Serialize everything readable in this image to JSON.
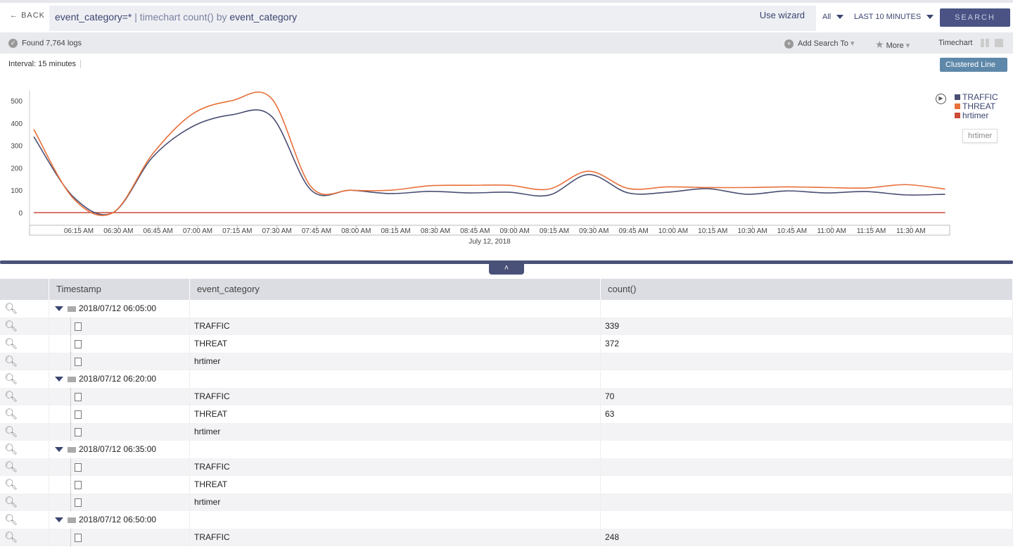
{
  "topbar": {
    "back_label": "BACK",
    "query_main": "event_category=*",
    "query_rest": " | timechart count() by ",
    "query_field": "event_category",
    "wizard_label": "Use wizard",
    "scope": "All",
    "time_range": "LAST 10 MINUTES",
    "search_label": "SEARCH"
  },
  "status": {
    "found": "Found 7,764 logs",
    "add_search": "Add Search To",
    "more": "More",
    "timechart": "Timechart"
  },
  "chart_header": {
    "interval": "Interval: 15 minutes",
    "chart_type": "Clustered Line"
  },
  "legend": {
    "tooltip": "hrtimer"
  },
  "chart_data": {
    "type": "line",
    "xlabel": "July 12, 2018",
    "ylim": [
      -30,
      530
    ],
    "yticks": [
      0,
      100,
      200,
      300,
      400,
      500
    ],
    "grid": false,
    "legend_position": "top-right",
    "x": [
      "06:05",
      "06:20",
      "06:35",
      "06:50",
      "07:05",
      "07:20",
      "07:35",
      "07:50",
      "08:05",
      "08:20",
      "08:35",
      "08:50",
      "09:05",
      "09:20",
      "09:35",
      "09:50",
      "10:05",
      "10:20",
      "10:35",
      "10:50",
      "11:05",
      "11:20",
      "11:35",
      "11:50"
    ],
    "xtick_labels": [
      "06:15 AM",
      "06:30 AM",
      "06:45 AM",
      "07:00 AM",
      "07:15 AM",
      "07:30 AM",
      "07:45 AM",
      "08:00 AM",
      "08:15 AM",
      "08:30 AM",
      "08:45 AM",
      "09:00 AM",
      "09:15 AM",
      "09:30 AM",
      "09:45 AM",
      "10:00 AM",
      "10:15 AM",
      "10:30 AM",
      "10:45 AM",
      "11:00 AM",
      "11:15 AM",
      "11:30 AM"
    ],
    "series": [
      {
        "name": "TRAFFIC",
        "color": "#4a4e72",
        "values": [
          339,
          70,
          0,
          248,
          384,
          437,
          430,
          100,
          100,
          85,
          95,
          88,
          91,
          78,
          170,
          88,
          91,
          107,
          82,
          97,
          88,
          94,
          79,
          82
        ]
      },
      {
        "name": "THREAT",
        "color": "#e8703a",
        "values": [
          372,
          63,
          0,
          262,
          440,
          500,
          510,
          115,
          100,
          100,
          120,
          122,
          122,
          105,
          185,
          108,
          115,
          112,
          112,
          115,
          112,
          110,
          125,
          105
        ]
      },
      {
        "name": "hrtimer",
        "color": "#cc4a38",
        "values": [
          0,
          0,
          0,
          0,
          0,
          0,
          0,
          0,
          0,
          0,
          0,
          0,
          0,
          0,
          0,
          0,
          0,
          0,
          0,
          0,
          0,
          0,
          0,
          0
        ]
      }
    ]
  },
  "table": {
    "headers": [
      "Timestamp",
      "event_category",
      "count()"
    ],
    "groups": [
      {
        "timestamp": "2018/07/12 06:05:00",
        "rows": [
          {
            "category": "TRAFFIC",
            "count": "339"
          },
          {
            "category": "THREAT",
            "count": "372"
          },
          {
            "category": "hrtimer",
            "count": ""
          }
        ]
      },
      {
        "timestamp": "2018/07/12 06:20:00",
        "rows": [
          {
            "category": "TRAFFIC",
            "count": "70"
          },
          {
            "category": "THREAT",
            "count": "63"
          },
          {
            "category": "hrtimer",
            "count": ""
          }
        ]
      },
      {
        "timestamp": "2018/07/12 06:35:00",
        "rows": [
          {
            "category": "TRAFFIC",
            "count": ""
          },
          {
            "category": "THREAT",
            "count": ""
          },
          {
            "category": "hrtimer",
            "count": ""
          }
        ]
      },
      {
        "timestamp": "2018/07/12 06:50:00",
        "rows": [
          {
            "category": "TRAFFIC",
            "count": "248"
          }
        ]
      }
    ]
  }
}
